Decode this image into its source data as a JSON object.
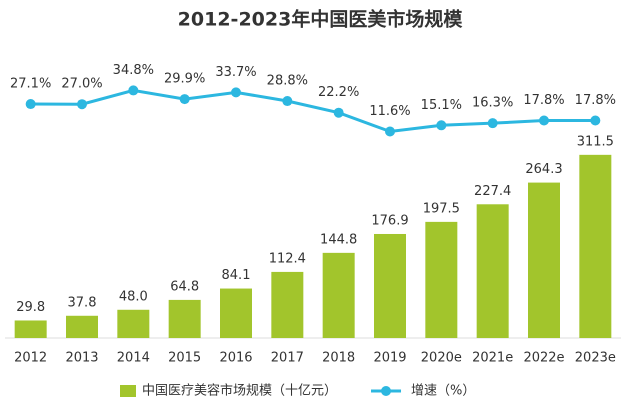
{
  "chart_data": {
    "type": "bar",
    "title": "2012-2023年中国医美市场规模",
    "categories": [
      "2012",
      "2013",
      "2014",
      "2015",
      "2016",
      "2017",
      "2018",
      "2019",
      "2020e",
      "2021e",
      "2022e",
      "2023e"
    ],
    "series": [
      {
        "name": "中国医疗美容市场规模（十亿元）",
        "type": "bar",
        "color": "#a2c52c",
        "values": [
          29.8,
          37.8,
          48.0,
          64.8,
          84.1,
          112.4,
          144.8,
          176.9,
          197.5,
          227.4,
          264.3,
          311.5
        ],
        "value_labels": [
          "29.8",
          "37.8",
          "48.0",
          "64.8",
          "84.1",
          "112.4",
          "144.8",
          "176.9",
          "197.5",
          "227.4",
          "264.3",
          "311.5"
        ]
      },
      {
        "name": "增速（%）",
        "type": "line",
        "axis": "y2",
        "color": "#2cb7e0",
        "values": [
          27.1,
          27.0,
          34.8,
          29.9,
          33.7,
          28.8,
          22.2,
          11.6,
          15.1,
          16.3,
          17.8,
          17.8
        ],
        "value_labels": [
          "27.1%",
          "27.0%",
          "34.8%",
          "29.9%",
          "33.7%",
          "28.8%",
          "22.2%",
          "11.6%",
          "15.1%",
          "16.3%",
          "17.8%",
          "17.8%"
        ]
      }
    ],
    "ylim": [
      0,
      500
    ],
    "y2lim": [
      -105,
      61
    ],
    "legend": "bottom"
  }
}
